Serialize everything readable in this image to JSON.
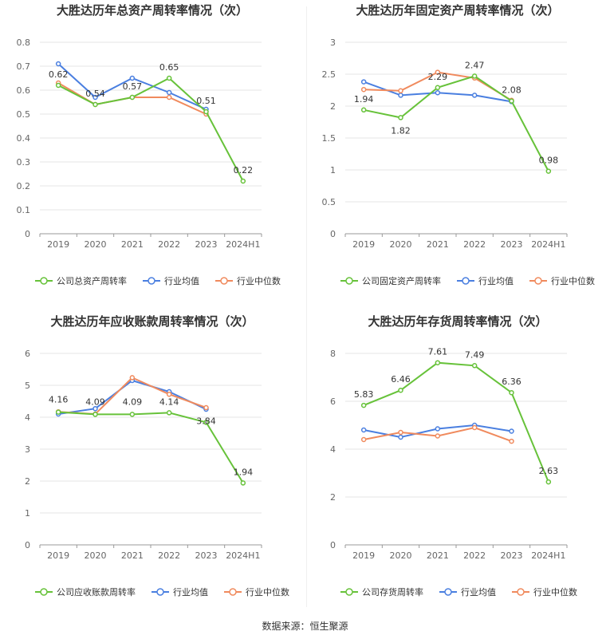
{
  "colors": {
    "company": "#67c23a",
    "avg": "#4a7fe0",
    "median": "#f08a5d",
    "grid": "#e6e6e6",
    "axis": "#999999"
  },
  "legend_labels": {
    "avg": "行业均值",
    "median": "行业中位数"
  },
  "source": "数据来源：恒生聚源",
  "chart_data": [
    {
      "type": "line",
      "title": "大胜达历年总资产周转率情况（次）",
      "categories": [
        "2019",
        "2020",
        "2021",
        "2022",
        "2023",
        "2024H1"
      ],
      "yticks": [
        "0",
        "0.1",
        "0.2",
        "0.3",
        "0.4",
        "0.5",
        "0.6",
        "0.7",
        "0.8"
      ],
      "ylim": [
        0,
        0.8
      ],
      "series": [
        {
          "name": "公司总资产周转率",
          "values": [
            0.62,
            0.54,
            0.57,
            0.65,
            0.51,
            0.22
          ],
          "labels": [
            "0.62",
            "0.54",
            "0.57",
            "0.65",
            "0.51",
            "0.22"
          ]
        },
        {
          "name": "行业均值",
          "values": [
            0.71,
            0.57,
            0.65,
            0.59,
            0.52,
            null
          ]
        },
        {
          "name": "行业中位数",
          "values": [
            0.63,
            0.54,
            0.57,
            0.57,
            0.5,
            null
          ]
        }
      ]
    },
    {
      "type": "line",
      "title": "大胜达历年固定资产周转率情况（次）",
      "categories": [
        "2019",
        "2020",
        "2021",
        "2022",
        "2023",
        "2024H1"
      ],
      "yticks": [
        "0",
        "0.5",
        "1",
        "1.5",
        "2",
        "2.5",
        "3"
      ],
      "ylim": [
        0,
        3
      ],
      "series": [
        {
          "name": "公司固定资产周转率",
          "values": [
            1.94,
            1.82,
            2.29,
            2.47,
            2.08,
            0.98
          ],
          "labels": [
            "1.94",
            "1.82",
            "2.29",
            "2.47",
            "2.08",
            "0.98"
          ]
        },
        {
          "name": "行业均值",
          "values": [
            2.38,
            2.17,
            2.21,
            2.17,
            2.07,
            null
          ]
        },
        {
          "name": "行业中位数",
          "values": [
            2.26,
            2.24,
            2.53,
            2.44,
            2.09,
            null
          ]
        }
      ]
    },
    {
      "type": "line",
      "title": "大胜达历年应收账款周转率情况（次）",
      "categories": [
        "2019",
        "2020",
        "2021",
        "2022",
        "2023",
        "2024H1"
      ],
      "yticks": [
        "0",
        "1",
        "2",
        "3",
        "4",
        "5",
        "6"
      ],
      "ylim": [
        0,
        6
      ],
      "series": [
        {
          "name": "公司应收账款周转率",
          "values": [
            4.16,
            4.09,
            4.09,
            4.14,
            3.84,
            1.94
          ],
          "labels": [
            "4.16",
            "4.09",
            "4.09",
            "4.14",
            "3.84",
            "1.94"
          ]
        },
        {
          "name": "行业均值",
          "values": [
            4.1,
            4.27,
            5.15,
            4.8,
            4.25,
            null
          ]
        },
        {
          "name": "行业中位数",
          "values": [
            4.17,
            4.1,
            5.24,
            4.72,
            4.3,
            null
          ]
        }
      ]
    },
    {
      "type": "line",
      "title": "大胜达历年存货周转率情况（次）",
      "categories": [
        "2019",
        "2020",
        "2021",
        "2022",
        "2023",
        "2024H1"
      ],
      "yticks": [
        "0",
        "2",
        "4",
        "6",
        "8"
      ],
      "ylim": [
        0,
        8
      ],
      "series": [
        {
          "name": "公司存货周转率",
          "values": [
            5.83,
            6.46,
            7.61,
            7.49,
            6.36,
            2.63
          ],
          "labels": [
            "5.83",
            "6.46",
            "7.61",
            "7.49",
            "6.36",
            "2.63"
          ]
        },
        {
          "name": "行业均值",
          "values": [
            4.8,
            4.5,
            4.85,
            5.0,
            4.75,
            null
          ]
        },
        {
          "name": "行业中位数",
          "values": [
            4.4,
            4.7,
            4.55,
            4.9,
            4.33,
            null
          ]
        }
      ]
    }
  ]
}
